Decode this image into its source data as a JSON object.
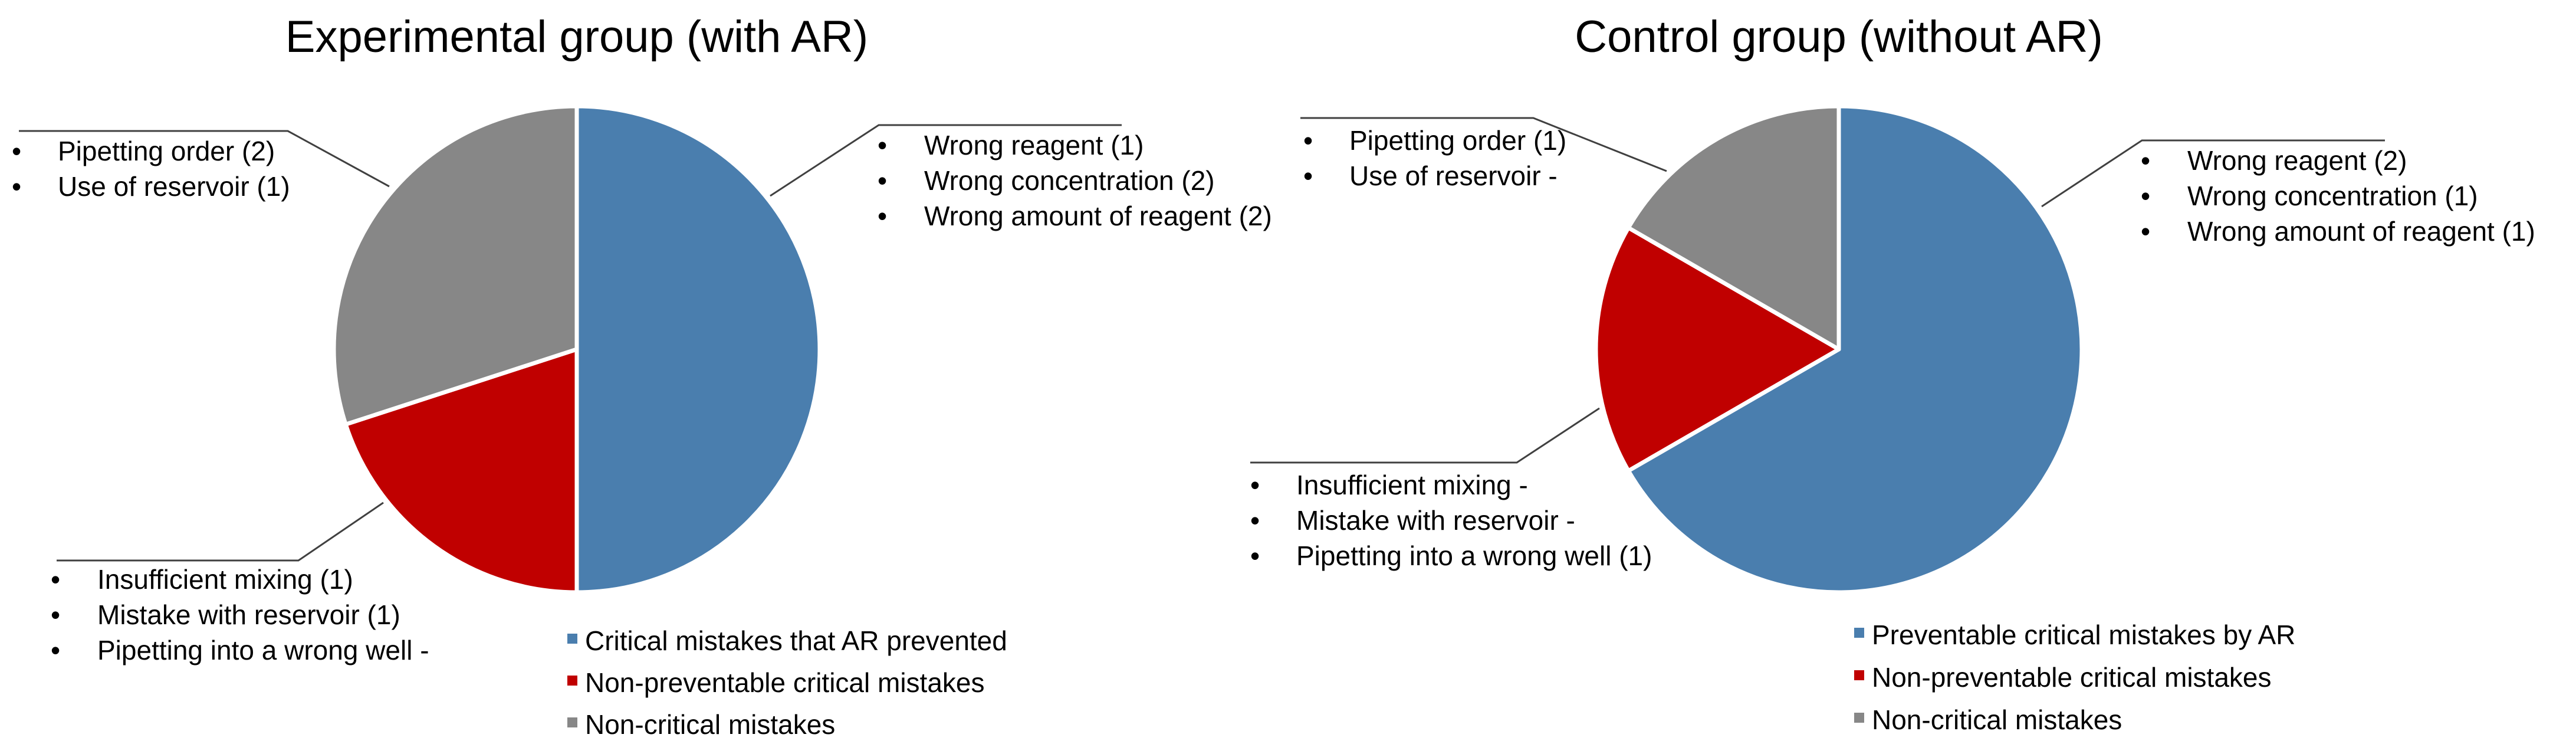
{
  "colors": {
    "preventable": "#4a7eae",
    "non_preventable": "#c00000",
    "non_critical": "#878787",
    "border": "#ffffff",
    "leader": "#404040",
    "text": "#000000"
  },
  "chart_data": [
    {
      "type": "pie",
      "title": "Experimental group (with AR)",
      "slices": [
        {
          "label": "Critical mistakes that AR prevented",
          "value": 5,
          "color": "#4a7eae"
        },
        {
          "label": "Non-preventable critical mistakes",
          "value": 2,
          "color": "#c00000"
        },
        {
          "label": "Non-critical mistakes",
          "value": 3,
          "color": "#878787"
        }
      ],
      "legend": [
        "Critical mistakes that AR prevented",
        "Non-preventable critical mistakes",
        "Non-critical mistakes"
      ],
      "legend_position": "bottom-right",
      "annotations": [
        {
          "slice": "Critical mistakes that AR prevented",
          "items": [
            "Wrong reagent (1)",
            "Wrong concentration (2)",
            "Wrong amount of reagent (2)"
          ]
        },
        {
          "slice": "Non-preventable critical mistakes",
          "items": [
            "Insufficient mixing (1)",
            "Mistake with reservoir (1)",
            "Pipetting into a wrong well -"
          ]
        },
        {
          "slice": "Non-critical mistakes",
          "items": [
            "Pipetting order (2)",
            "Use of reservoir (1)"
          ]
        }
      ]
    },
    {
      "type": "pie",
      "title": "Control group (without AR)",
      "slices": [
        {
          "label": "Preventable critical mistakes by AR",
          "value": 4,
          "color": "#4a7eae"
        },
        {
          "label": "Non-preventable critical mistakes",
          "value": 1,
          "color": "#c00000"
        },
        {
          "label": "Non-critical mistakes",
          "value": 1,
          "color": "#878787"
        }
      ],
      "legend": [
        "Preventable critical mistakes by AR",
        "Non-preventable critical mistakes",
        "Non-critical mistakes"
      ],
      "legend_position": "bottom-right",
      "annotations": [
        {
          "slice": "Preventable critical mistakes by AR",
          "items": [
            "Wrong reagent (2)",
            "Wrong concentration (1)",
            "Wrong amount of reagent (1)"
          ]
        },
        {
          "slice": "Non-preventable critical mistakes",
          "items": [
            "Insufficient mixing -",
            "Mistake with reservoir -",
            "Pipetting into a wrong well (1)"
          ]
        },
        {
          "slice": "Non-critical mistakes",
          "items": [
            "Pipetting order (1)",
            "Use of reservoir -"
          ]
        }
      ]
    }
  ]
}
